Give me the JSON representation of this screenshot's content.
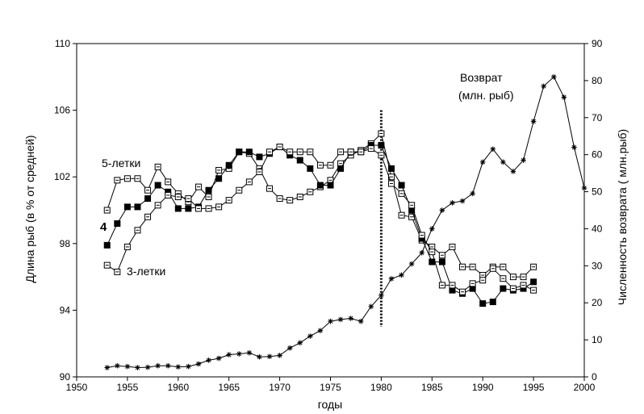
{
  "chart_data": {
    "type": "line",
    "xlabel": "годы",
    "ylabel_left": "Длина рыб (в % от средней)",
    "ylabel_right": "Численность возврата ( млн.рыб)",
    "xlim": [
      1950,
      2000
    ],
    "ylim_left": [
      90,
      110
    ],
    "ylim_right": [
      0,
      90
    ],
    "x_ticks": [
      1950,
      1955,
      1960,
      1965,
      1970,
      1975,
      1980,
      1985,
      1990,
      1995,
      2000
    ],
    "y_left_ticks": [
      90,
      94,
      98,
      102,
      106,
      110
    ],
    "y_right_ticks": [
      0,
      10,
      20,
      30,
      40,
      50,
      60,
      70,
      80,
      90
    ],
    "grid": false,
    "vline": {
      "x": 1980,
      "y_from": 93,
      "y_to": 106
    },
    "annotations": {
      "five_year": "5-летки",
      "four_year": "4",
      "three_year": "3-летки",
      "return_line1": "Возврат",
      "return_line2": "(млн. рыб)"
    },
    "series": [
      {
        "key": "five_year",
        "axis": "left",
        "marker": "open",
        "x": [
          1953,
          1954,
          1955,
          1956,
          1957,
          1958,
          1959,
          1960,
          1961,
          1962,
          1963,
          1964,
          1965,
          1966,
          1967,
          1968,
          1969,
          1970,
          1971,
          1972,
          1973,
          1974,
          1975,
          1976,
          1977,
          1978,
          1979,
          1980,
          1981,
          1982,
          1983,
          1984,
          1985,
          1986,
          1987,
          1988,
          1989,
          1990,
          1991,
          1992,
          1993,
          1994,
          1995
        ],
        "values": [
          100.0,
          101.8,
          101.9,
          101.9,
          101.2,
          102.6,
          101.7,
          101.0,
          100.5,
          101.4,
          100.8,
          102.4,
          102.5,
          103.5,
          103.4,
          102.5,
          101.3,
          100.7,
          100.6,
          100.8,
          101.1,
          101.4,
          101.8,
          102.8,
          103.3,
          103.6,
          104.0,
          104.6,
          102.0,
          99.7,
          99.6,
          98.2,
          97.8,
          97.3,
          97.8,
          96.6,
          96.6,
          96.1,
          96.6,
          96.6,
          96.0,
          96.0,
          96.6
        ]
      },
      {
        "key": "four_year",
        "axis": "left",
        "marker": "filled",
        "x": [
          1953,
          1954,
          1955,
          1956,
          1957,
          1958,
          1959,
          1960,
          1961,
          1962,
          1963,
          1964,
          1965,
          1966,
          1967,
          1968,
          1969,
          1970,
          1971,
          1972,
          1973,
          1974,
          1975,
          1976,
          1977,
          1978,
          1979,
          1980,
          1981,
          1982,
          1983,
          1984,
          1985,
          1986,
          1987,
          1988,
          1989,
          1990,
          1991,
          1992,
          1993,
          1994,
          1995
        ],
        "values": [
          97.9,
          99.2,
          100.2,
          100.2,
          100.7,
          101.5,
          101.1,
          100.1,
          100.1,
          100.2,
          101.2,
          101.9,
          102.7,
          103.5,
          103.5,
          103.2,
          103.4,
          103.8,
          103.3,
          103.0,
          102.5,
          101.5,
          101.5,
          102.5,
          103.5,
          103.5,
          103.9,
          103.9,
          102.5,
          101.5,
          100.0,
          98.3,
          96.9,
          96.9,
          95.2,
          95.0,
          95.3,
          94.4,
          94.5,
          95.3,
          95.2,
          95.3,
          95.7
        ]
      },
      {
        "key": "three_year",
        "axis": "left",
        "marker": "open",
        "x": [
          1953,
          1954,
          1955,
          1956,
          1957,
          1958,
          1959,
          1960,
          1961,
          1962,
          1963,
          1964,
          1965,
          1966,
          1967,
          1968,
          1969,
          1970,
          1971,
          1972,
          1973,
          1974,
          1975,
          1976,
          1977,
          1978,
          1979,
          1980,
          1981,
          1982,
          1983,
          1984,
          1985,
          1986,
          1987,
          1988,
          1989,
          1990,
          1991,
          1992,
          1993,
          1994,
          1995
        ],
        "values": [
          96.7,
          96.3,
          97.8,
          98.8,
          99.6,
          100.3,
          100.9,
          100.8,
          100.7,
          100.1,
          100.1,
          100.2,
          100.6,
          101.2,
          101.7,
          102.3,
          103.5,
          103.8,
          103.5,
          103.5,
          103.5,
          102.7,
          102.7,
          103.5,
          103.5,
          103.5,
          103.7,
          103.3,
          101.6,
          101.0,
          100.3,
          98.5,
          97.5,
          95.5,
          95.5,
          95.1,
          95.6,
          95.8,
          96.5,
          95.9,
          95.3,
          95.5,
          95.2
        ]
      },
      {
        "key": "return",
        "axis": "right",
        "marker": "star",
        "x": [
          1953,
          1954,
          1955,
          1956,
          1957,
          1958,
          1959,
          1960,
          1961,
          1962,
          1963,
          1964,
          1965,
          1966,
          1967,
          1968,
          1969,
          1970,
          1971,
          1972,
          1973,
          1974,
          1975,
          1976,
          1977,
          1978,
          1979,
          1980,
          1981,
          1982,
          1983,
          1984,
          1985,
          1986,
          1987,
          1988,
          1989,
          1990,
          1991,
          1992,
          1993,
          1994,
          1995,
          1996,
          1997,
          1998,
          1999,
          2000
        ],
        "values": [
          2.5,
          3.0,
          2.8,
          2.5,
          2.6,
          3.0,
          3.0,
          2.7,
          2.8,
          3.5,
          4.5,
          5.0,
          6.0,
          6.2,
          6.5,
          5.4,
          5.5,
          5.8,
          7.8,
          9.2,
          11.0,
          12.5,
          15.0,
          15.5,
          15.8,
          15.0,
          19.0,
          22.0,
          26.5,
          27.5,
          30.5,
          33.5,
          40.0,
          45.0,
          47.0,
          47.5,
          49.5,
          58.0,
          61.5,
          58.0,
          55.5,
          58.5,
          69.0,
          78.5,
          81.0,
          75.5,
          62.0,
          51.0
        ]
      }
    ]
  }
}
